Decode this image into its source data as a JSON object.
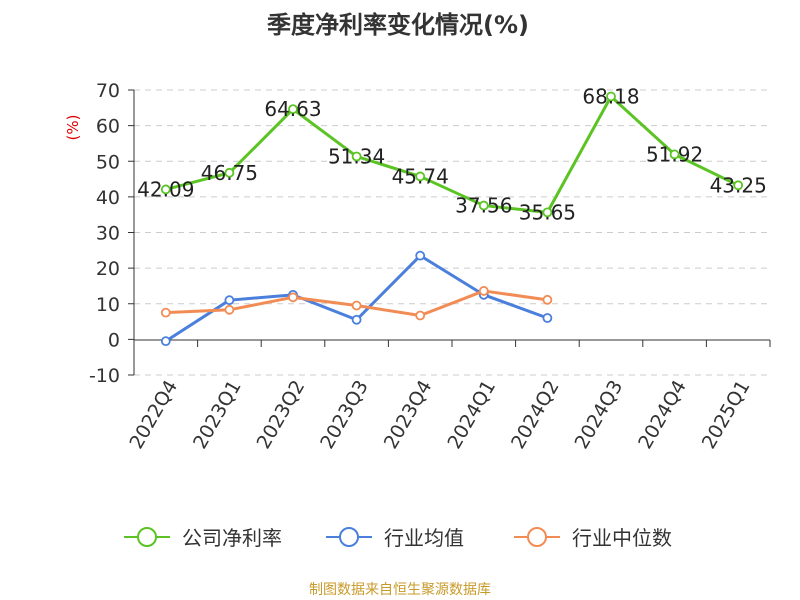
{
  "chart_data": {
    "type": "line",
    "title": "季度净利率变化情况(%)",
    "ylabel": "(%)",
    "xlabel": "",
    "categories": [
      "2022Q4",
      "2023Q1",
      "2023Q2",
      "2023Q3",
      "2023Q4",
      "2024Q1",
      "2024Q2",
      "2024Q3",
      "2024Q4",
      "2025Q1"
    ],
    "ylim": [
      -10,
      70
    ],
    "yticks": [
      "70",
      "60",
      "50",
      "40",
      "30",
      "20",
      "10",
      "0",
      "-10"
    ],
    "grid": true,
    "legend_position": "bottom",
    "series": [
      {
        "name": "公司净利率",
        "color": "#5bc424",
        "values": [
          42.09,
          46.75,
          64.63,
          51.34,
          45.74,
          37.56,
          35.65,
          68.18,
          51.92,
          43.25
        ],
        "labels": [
          "42.09",
          "46.75",
          "64.63",
          "51.34",
          "45.74",
          "37.56",
          "35.65",
          "68.18",
          "51.92",
          "43.25"
        ]
      },
      {
        "name": "行业均值",
        "color": "#4a7fdb",
        "values": [
          -0.5,
          11.0,
          12.5,
          5.5,
          23.5,
          12.5,
          6.0,
          null,
          null,
          null
        ]
      },
      {
        "name": "行业中位数",
        "color": "#f28c55",
        "values": [
          7.5,
          8.3,
          11.8,
          9.5,
          6.7,
          13.6,
          11.1,
          null,
          null,
          null
        ]
      }
    ],
    "source": "制图数据来自恒生聚源数据库"
  }
}
